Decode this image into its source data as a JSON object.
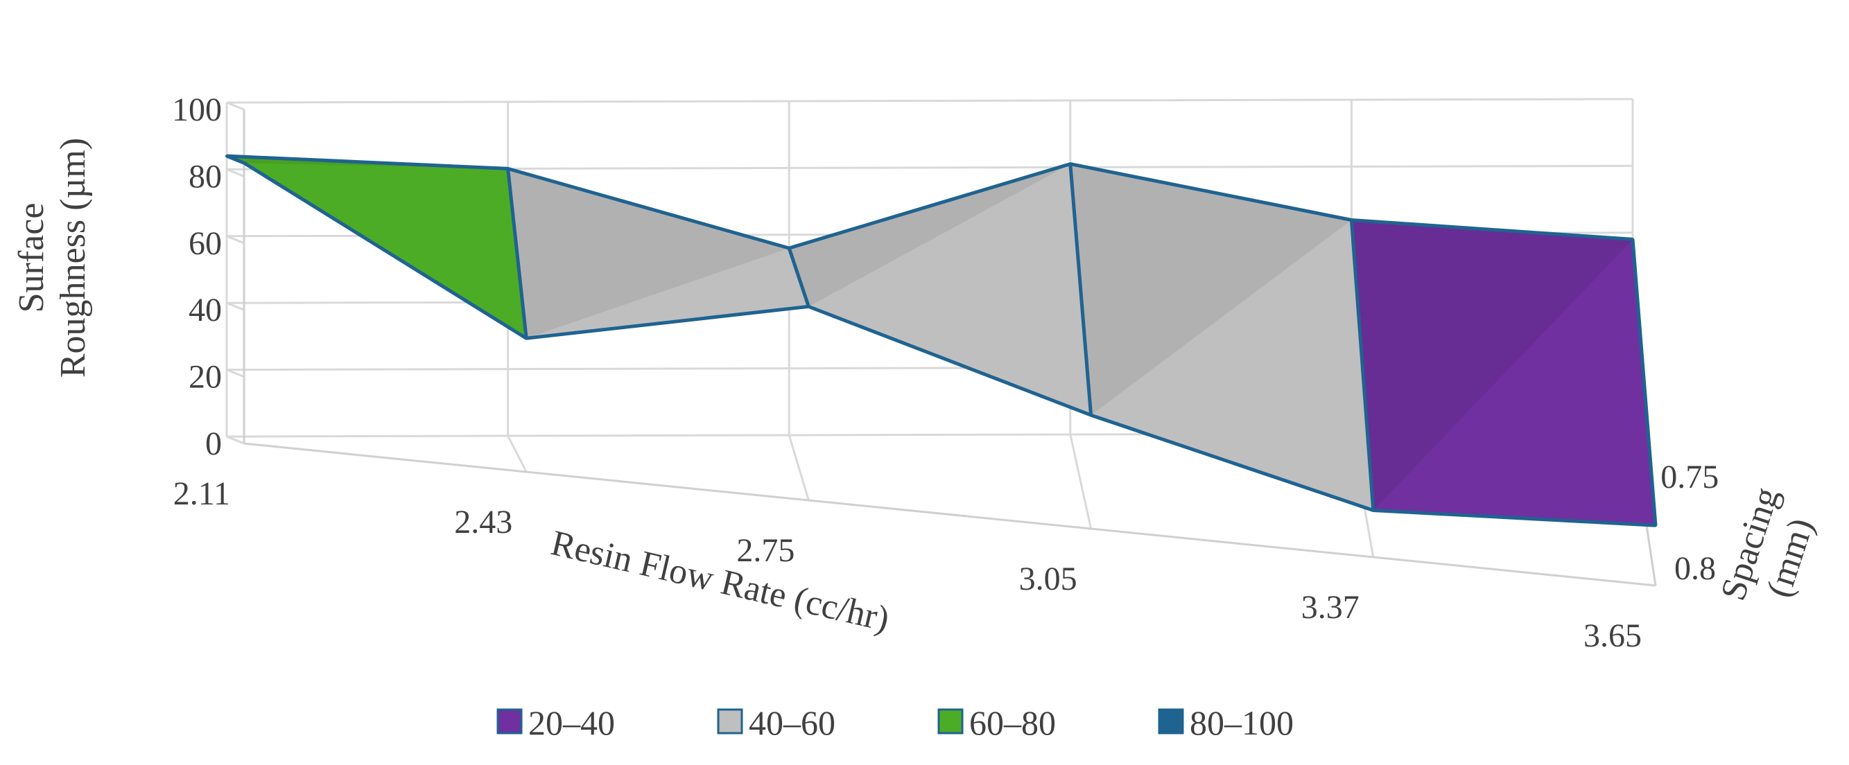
{
  "chart_data": {
    "type": "surface",
    "title": "",
    "xlabel": "Resin Flow Rate (cc/hr)",
    "ylabel": "Surface Roughness (µm)",
    "ylabel_lines": [
      "Surface",
      "Roughness (µm)"
    ],
    "zlabel": "Spacing (mm)",
    "zlabel_lines": [
      "Spacing",
      "(mm)"
    ],
    "x_categories": [
      "2.11",
      "2.43",
      "2.75",
      "3.05",
      "3.37",
      "3.65"
    ],
    "z_categories": [
      "0.8",
      "0.75"
    ],
    "y_ticks": [
      "0",
      "20",
      "40",
      "60",
      "80",
      "100"
    ],
    "ylim": [
      0,
      100
    ],
    "grid": true,
    "legend_position": "bottom",
    "series": [
      {
        "name": "0.8",
        "values": [
          84,
          40,
          58,
          34,
          14,
          18
        ]
      },
      {
        "name": "0.75",
        "values": [
          84,
          80,
          56,
          81,
          64,
          58
        ]
      }
    ],
    "bands": [
      {
        "name": "20–40",
        "color": "#7030a0"
      },
      {
        "name": "40–60",
        "color": "#bfbfbf"
      },
      {
        "name": "60–80",
        "color": "#4dac26"
      },
      {
        "name": "80–100",
        "color": "#1f6391"
      }
    ]
  }
}
